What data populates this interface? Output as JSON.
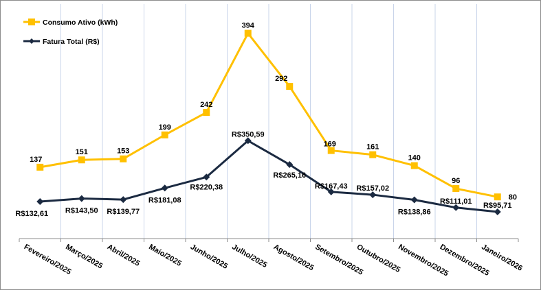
{
  "chart_data": {
    "type": "line",
    "title": "",
    "xlabel": "",
    "ylabel": "",
    "categories": [
      "Fevereiro/2025",
      "Março/2025",
      "Abril/2025",
      "Maio/2025",
      "Junho/2025",
      "Julho/2025",
      "Agosto/2025",
      "Setembro/2025",
      "Outubro/2025",
      "Novembro/2025",
      "Dezembro/2025",
      "Janeiro/2026"
    ],
    "series": [
      {
        "name": "Consumo Ativo (kWh)",
        "color": "#FFC000",
        "marker": "square",
        "axis": "primary",
        "values": [
          137,
          151,
          153,
          199,
          242,
          394,
          292,
          169,
          161,
          140,
          96,
          80
        ],
        "labels": [
          "137",
          "151",
          "153",
          "199",
          "242",
          "394",
          "292",
          "169",
          "161",
          "140",
          "96",
          "80"
        ]
      },
      {
        "name": "Fatura Total (R$)",
        "color": "#1B2A41",
        "marker": "diamond",
        "axis": "secondary",
        "values": [
          132.61,
          143.5,
          139.77,
          181.08,
          220.38,
          350.59,
          265.16,
          167.43,
          157.02,
          138.86,
          111.01,
          95.71
        ],
        "labels": [
          "R$132,61",
          "R$143,50",
          "R$139,77",
          "R$181,08",
          "R$220,38",
          "R$350,59",
          "R$265,16",
          "R$167,43",
          "R$157,02",
          "R$138,86",
          "R$111,01",
          "R$95,71"
        ]
      }
    ],
    "ylim_primary": [
      0,
      450
    ],
    "ylim_secondary": [
      0,
      840
    ],
    "grid": "vertical",
    "legend": "top-left"
  }
}
